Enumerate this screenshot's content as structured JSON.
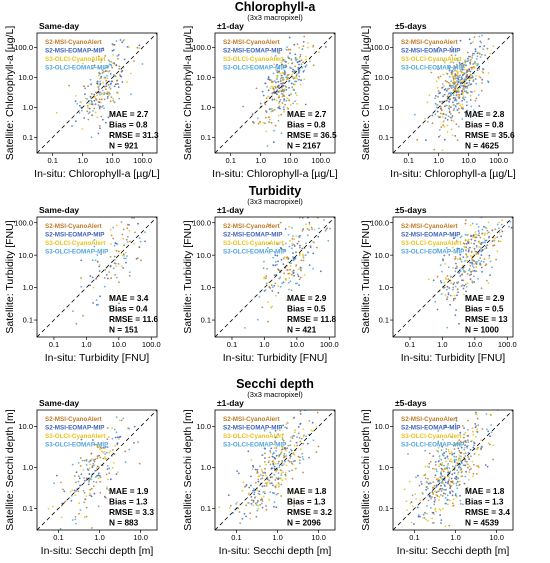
{
  "legend": {
    "entries": [
      "S2-MSI-CyanoAlert",
      "S2-MSI-EOMAP-MIP",
      "S3-OLCI-CyanoAlert",
      "S3-OLCI-EOMAP-MIP"
    ],
    "colors": [
      "#c07a2a",
      "#3f63b8",
      "#e8c21e",
      "#4fa6de"
    ]
  },
  "chart_data": [
    {
      "section": "chla",
      "type": "scatter",
      "title": "Chlorophyll-a",
      "subtitle": "(3x3 macropixel)",
      "xlabel": "In-situ: Chlorophyll-a [µg/L]",
      "ylabel": "Satellite: Chlorophyll-a [µg/L]",
      "scale": "log",
      "xlim": [
        0.03,
        300
      ],
      "ylim": [
        0.03,
        300
      ],
      "xticks": [
        "0.1",
        "1.0",
        "10.0",
        "100.0"
      ],
      "yticks": [
        "0.1",
        "1.0",
        "10.0",
        "100.0"
      ],
      "one_to_one_line": true,
      "panels": [
        {
          "label": "Same-day",
          "stats": {
            "mae": "MAE = 2.7",
            "bias": "Bias = 0.8",
            "rmse": "RMSE = 31.3",
            "n": "N = 921"
          }
        },
        {
          "label": "±1-day",
          "stats": {
            "mae": "MAE = 2.7",
            "bias": "Bias = 0.8",
            "rmse": "RMSE = 36.5",
            "n": "N = 2167"
          }
        },
        {
          "label": "±5-days",
          "stats": {
            "mae": "MAE = 2.8",
            "bias": "Bias = 0.8",
            "rmse": "RMSE = 35.6",
            "n": "N = 4625"
          }
        }
      ]
    },
    {
      "section": "turb",
      "type": "scatter",
      "title": "Turbidity",
      "subtitle": "(3x3 macropixel)",
      "xlabel": "In-situ: Turbidity [FNU]",
      "ylabel": "Satellite: Turbidity [FNU]",
      "scale": "log",
      "xlim": [
        0.03,
        150
      ],
      "ylim": [
        0.03,
        150
      ],
      "xticks": [
        "0.1",
        "1.0",
        "10.0",
        "100.0"
      ],
      "yticks": [
        "0.1",
        "1.0",
        "10.0",
        "100.0"
      ],
      "one_to_one_line": true,
      "panels": [
        {
          "label": "Same-day",
          "stats": {
            "mae": "MAE = 3.4",
            "bias": "Bias = 0.4",
            "rmse": "RMSE = 11.6",
            "n": "N = 151"
          }
        },
        {
          "label": "±1-day",
          "stats": {
            "mae": "MAE = 2.9",
            "bias": "Bias = 0.5",
            "rmse": "RMSE = 11.8",
            "n": "N = 421"
          }
        },
        {
          "label": "±5-days",
          "stats": {
            "mae": "MAE = 2.9",
            "bias": "Bias = 0.5",
            "rmse": "RMSE = 13",
            "n": "N = 1000"
          }
        }
      ]
    },
    {
      "section": "secchi",
      "type": "scatter",
      "title": "Secchi depth",
      "subtitle": "(3x3 macropixel)",
      "xlabel": "In-situ: Secchi depth [m]",
      "ylabel": "Satellite: Secchi depth [m]",
      "scale": "log",
      "xlim": [
        0.03,
        25
      ],
      "ylim": [
        0.03,
        25
      ],
      "xticks": [
        "0.1",
        "1.0",
        "10.0"
      ],
      "yticks": [
        "0.1",
        "1.0",
        "10.0"
      ],
      "one_to_one_line": true,
      "panels": [
        {
          "label": "Same-day",
          "stats": {
            "mae": "MAE = 1.9",
            "bias": "Bias = 1.3",
            "rmse": "RMSE = 3.3",
            "n": "N = 883"
          }
        },
        {
          "label": "±1-day",
          "stats": {
            "mae": "MAE = 1.8",
            "bias": "Bias = 1.3",
            "rmse": "RMSE = 3.2",
            "n": "N = 2096"
          }
        },
        {
          "label": "±5-days",
          "stats": {
            "mae": "MAE = 1.8",
            "bias": "Bias = 1.3",
            "rmse": "RMSE = 3.4",
            "n": "N = 4539"
          }
        }
      ]
    }
  ]
}
